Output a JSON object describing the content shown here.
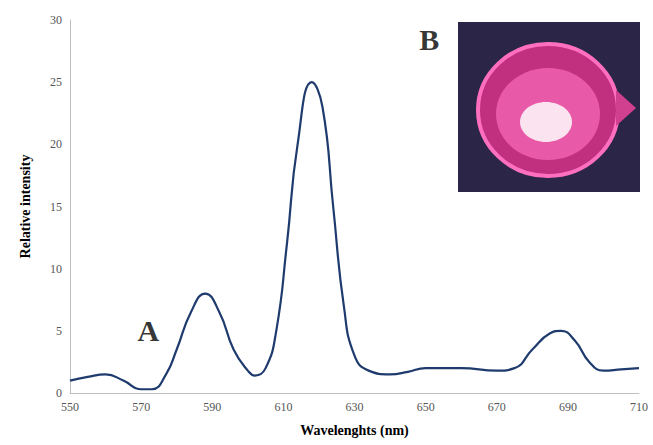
{
  "chart_data": {
    "type": "line",
    "x_label": "Wavelenghts (nm)",
    "y_label": "Relative intensity",
    "x": [
      550,
      555,
      560,
      565,
      570,
      573,
      577,
      580,
      584,
      588,
      592,
      596,
      600,
      602,
      605,
      608,
      611,
      614,
      618,
      621,
      624,
      627,
      630,
      634,
      640,
      645,
      650,
      660,
      670,
      675,
      680,
      685,
      688,
      692,
      696,
      700,
      705,
      710
    ],
    "values": [
      1.0,
      1.3,
      1.5,
      1.0,
      0.3,
      0.3,
      1.5,
      3.5,
      6.5,
      8.0,
      6.5,
      3.5,
      1.8,
      1.4,
      2.0,
      5.0,
      12.0,
      20.0,
      25.0,
      23.0,
      15.0,
      7.0,
      3.0,
      1.8,
      1.5,
      1.7,
      2.0,
      2.0,
      1.8,
      2.0,
      3.5,
      4.8,
      5.0,
      4.2,
      2.5,
      1.8,
      1.9,
      2.0
    ],
    "color": "#1f3b6e",
    "xlim": [
      550,
      710
    ],
    "xticks": [
      550,
      570,
      590,
      610,
      630,
      650,
      670,
      690,
      710
    ],
    "ylim": [
      0,
      30
    ],
    "yticks": [
      0,
      5,
      10,
      15,
      20,
      25,
      30
    ],
    "grid": false,
    "annotations": [
      {
        "text": "A",
        "x": 572,
        "y": 5
      },
      {
        "text": "B",
        "x": 651,
        "y": 28.4
      }
    ]
  }
}
